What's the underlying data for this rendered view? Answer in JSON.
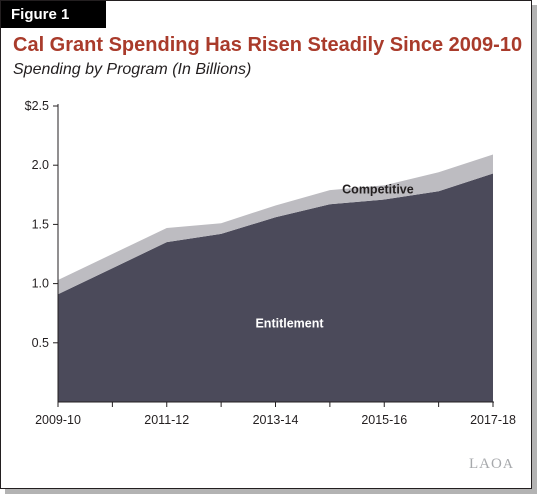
{
  "figure_label": "Figure 1",
  "chart_data": {
    "type": "area",
    "stacked": true,
    "title": "Cal Grant Spending Has Risen Steadily Since 2009-10",
    "subtitle": "Spending by Program (In Billions)",
    "x": [
      "2009-10",
      "2010-11",
      "2011-12",
      "2012-13",
      "2013-14",
      "2014-15",
      "2015-16",
      "2016-17",
      "2017-18"
    ],
    "x_tick_labels": [
      "2009-10",
      "2011-12",
      "2013-14",
      "2015-16",
      "2017-18"
    ],
    "y_tick_labels": [
      "$2.5",
      "2.0",
      "1.5",
      "1.0",
      "0.5"
    ],
    "ylim": [
      0,
      2.5
    ],
    "series": [
      {
        "name": "Entitlement",
        "values": [
          0.91,
          1.13,
          1.35,
          1.42,
          1.56,
          1.67,
          1.71,
          1.78,
          1.93
        ],
        "color": "#4b4a5a"
      },
      {
        "name": "Competitive",
        "values": [
          0.12,
          0.12,
          0.12,
          0.09,
          0.1,
          0.12,
          0.12,
          0.16,
          0.16
        ],
        "color": "#bdbcc1"
      }
    ],
    "grid": false,
    "legend": "inline labels"
  },
  "source_logo": "LAO"
}
